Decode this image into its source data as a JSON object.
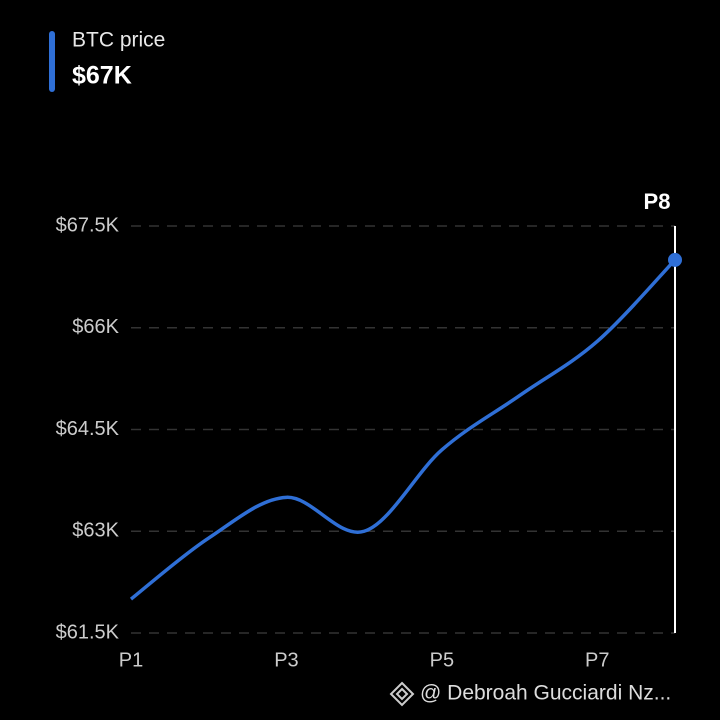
{
  "chart_data": {
    "type": "line",
    "legend_title": "BTC price",
    "legend_value": "$67K",
    "categories": [
      "P1",
      null,
      "P3",
      null,
      "P5",
      null,
      "P7",
      "P8"
    ],
    "series": [
      {
        "name": "BTC price",
        "color": "#2f6fd6",
        "values": [
          62000,
          62900,
          63500,
          63000,
          64200,
          65000,
          65800,
          67000
        ]
      }
    ],
    "ylim": [
      61500,
      67500
    ],
    "yticks": [
      {
        "value": 61500,
        "label": "$61.5K"
      },
      {
        "value": 63000,
        "label": "$63K"
      },
      {
        "value": 64500,
        "label": "$64.5K"
      },
      {
        "value": 66000,
        "label": "$66K"
      },
      {
        "value": 67500,
        "label": "$67.5K"
      }
    ],
    "grid": true,
    "highlight_index": 7
  },
  "watermark": "@ Debroah Gucciardi Nz..."
}
